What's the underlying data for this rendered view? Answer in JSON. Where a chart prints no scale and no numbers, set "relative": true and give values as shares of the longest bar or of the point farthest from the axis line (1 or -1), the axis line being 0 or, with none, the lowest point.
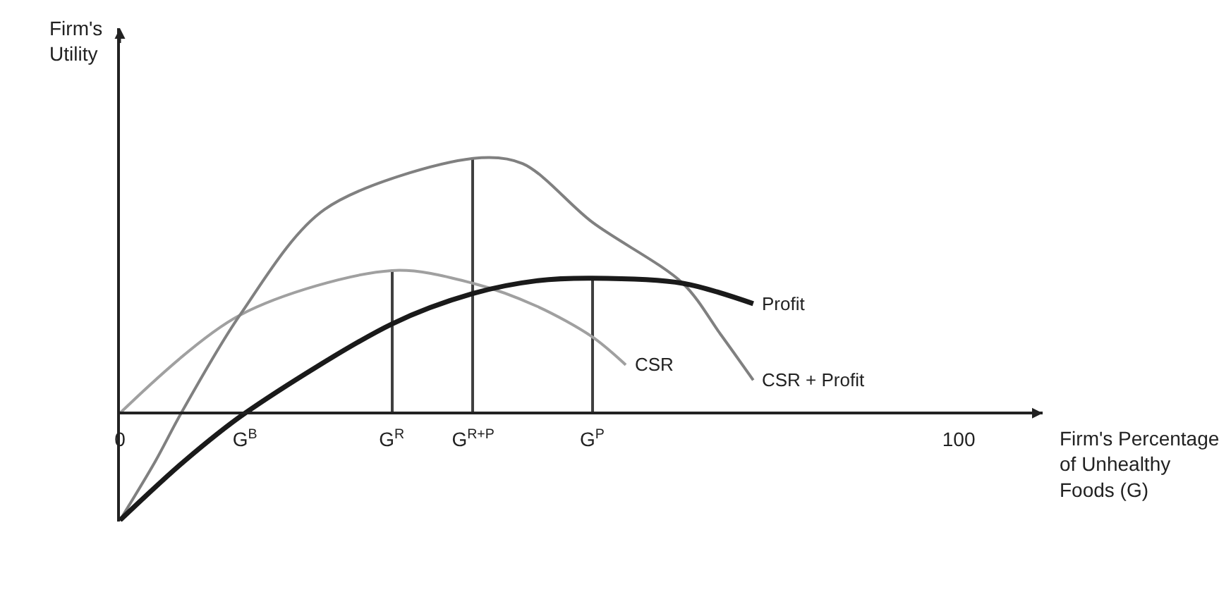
{
  "chart_data": {
    "type": "line",
    "relative": true,
    "xlabel": "Firm's Percentage\nof Unhealthy\nFoods (G)",
    "ylabel": "Firm's\nUtility",
    "xlim": [
      0,
      110
    ],
    "xticks": [
      0,
      {
        "value": 14.9,
        "label": "G$^{B}$"
      },
      {
        "value": 32.4,
        "label": "G$^{R}$"
      },
      {
        "value": 42.1,
        "label": "G$^{R+P}$"
      },
      {
        "value": 56.3,
        "label": "G$^{P}$"
      },
      100
    ],
    "series": [
      {
        "name": "CSR",
        "color": "#a0a0a0",
        "x": [
          0,
          14.3,
          32.4,
          42.1,
          49.7,
          56.3,
          60.3
        ],
        "values": [
          0,
          0.385,
          0.56,
          0.51,
          0.42,
          0.3,
          0.19
        ]
      },
      {
        "name": "CSR + Profit",
        "color": "#808080",
        "x": [
          0,
          4.2,
          7.3,
          14.3,
          24.4,
          42.1,
          48,
          56.3,
          67.1,
          71.6,
          75.5
        ],
        "values": [
          -0.42,
          -0.19,
          0,
          0.385,
          0.8,
          1,
          0.98,
          0.75,
          0.51,
          0.31,
          0.13
        ]
      },
      {
        "name": "Profit",
        "color": "#1a1a1a",
        "x": [
          0,
          7.6,
          14.9,
          32.4,
          42.1,
          49.7,
          56.3,
          67.1,
          75.5
        ],
        "values": [
          -0.42,
          -0.19,
          0,
          0.35,
          0.47,
          0.52,
          0.53,
          0.51,
          0.43
        ]
      },
      {
        "type": "bar",
        "color": "#404040",
        "x": [
          32.4,
          42.1,
          56.3
        ],
        "values": [
          0.56,
          1,
          0.53
        ]
      }
    ],
    "legend": false
  }
}
